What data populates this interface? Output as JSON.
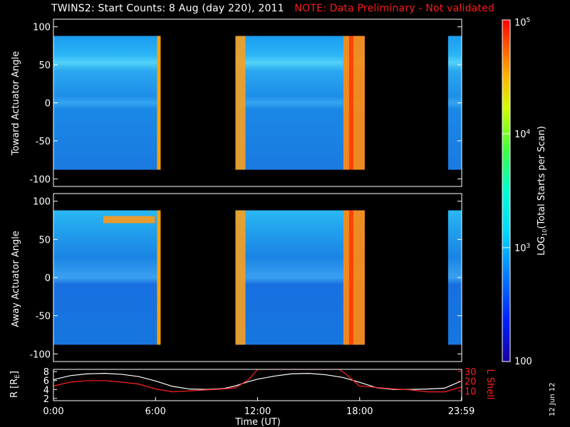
{
  "title": {
    "main": "TWINS2: Start Counts:  8 Aug (day 220), 2011",
    "note": "NOTE: Data Preliminary - Not validated"
  },
  "print_date": "12 Jun 12",
  "colors": {
    "background": "#000000",
    "note": "#ff1a1a",
    "r_line": "#ffffff",
    "l_shell_line": "#ff2020"
  },
  "chart_data": [
    {
      "type": "heatmap",
      "panel": "toward",
      "ylabel": "Toward Actuator Angle",
      "ylim": [
        -110,
        110
      ],
      "yticks": [
        "100",
        "50",
        "0",
        "-50",
        "-100"
      ],
      "ytick_values": [
        100,
        50,
        0,
        -50,
        -100
      ],
      "x_range_hours": [
        0,
        24
      ],
      "data_y_range": [
        -88,
        88
      ],
      "segments_hours": [
        [
          0,
          6.3
        ],
        [
          10.7,
          18.3
        ],
        [
          23.2,
          24
        ]
      ],
      "value_scale": "log10",
      "value_range": [
        100,
        100000
      ]
    },
    {
      "type": "heatmap",
      "panel": "away",
      "ylabel": "Away Actuator Angle",
      "ylim": [
        -110,
        110
      ],
      "yticks": [
        "100",
        "50",
        "0",
        "-50",
        "-100"
      ],
      "ytick_values": [
        100,
        50,
        0,
        -50,
        -100
      ],
      "x_range_hours": [
        0,
        24
      ],
      "data_y_range": [
        -88,
        88
      ],
      "segments_hours": [
        [
          0,
          6.3
        ],
        [
          10.7,
          18.3
        ],
        [
          23.2,
          24
        ]
      ],
      "value_scale": "log10",
      "value_range": [
        100,
        100000
      ]
    },
    {
      "type": "line",
      "panel": "ephemeris",
      "xlabel": "Time (UT)",
      "xticks": [
        "0:00",
        "6:00",
        "12:00",
        "18:00",
        "23:59"
      ],
      "xtick_values": [
        0,
        6,
        12,
        18,
        23.98
      ],
      "left_axis": {
        "ylabel": "R [R",
        "ylabel_sub": "E",
        "ylabel_end": "]",
        "yticks": [
          "2",
          "4",
          "6",
          "8"
        ],
        "ytick_values": [
          2,
          4,
          6,
          8
        ],
        "ylim": [
          1.5,
          8.5
        ]
      },
      "right_axis": {
        "ylabel": "L Shell",
        "yticks": [
          "10",
          "20",
          "30"
        ],
        "ytick_values": [
          10,
          20,
          30
        ],
        "ylim": [
          0,
          32
        ]
      },
      "series": [
        {
          "axis": "left",
          "x": [
            0,
            1,
            2,
            3,
            4,
            5,
            6,
            7,
            8,
            9,
            10,
            10.7,
            11.5,
            12,
            13,
            14,
            15,
            16,
            17,
            18,
            19,
            20,
            21,
            22,
            23,
            23.98
          ],
          "y": [
            6.2,
            7.1,
            7.5,
            7.6,
            7.4,
            6.9,
            5.9,
            4.7,
            4.1,
            4.0,
            4.2,
            4.8,
            5.8,
            6.3,
            7.0,
            7.5,
            7.6,
            7.3,
            6.7,
            5.6,
            4.4,
            4.0,
            4.0,
            4.1,
            4.3,
            5.9
          ]
        },
        {
          "axis": "right",
          "x": [
            0,
            1,
            2,
            3,
            4,
            5,
            6,
            7,
            8,
            9,
            10,
            10.7,
            11.5,
            12,
            16.8,
            17.2,
            18,
            19,
            20,
            21,
            22,
            23,
            23.98
          ],
          "y": [
            15,
            19,
            20.5,
            20.5,
            19,
            17,
            12,
            9,
            10,
            11,
            12,
            13,
            22,
            32,
            32,
            27,
            15,
            13.5,
            12,
            11,
            9,
            9,
            14
          ]
        }
      ]
    }
  ],
  "colorbar": {
    "label_prefix": "LOG",
    "label_sub": "10",
    "label_suffix": "(Total Starts per Scan)",
    "ticks": [
      {
        "label": "10",
        "exp": "5",
        "value": 100000
      },
      {
        "label": "10",
        "exp": "4",
        "value": 10000
      },
      {
        "label": "10",
        "exp": "3",
        "value": 1000
      },
      {
        "label": "100",
        "exp": "",
        "value": 100
      }
    ]
  }
}
